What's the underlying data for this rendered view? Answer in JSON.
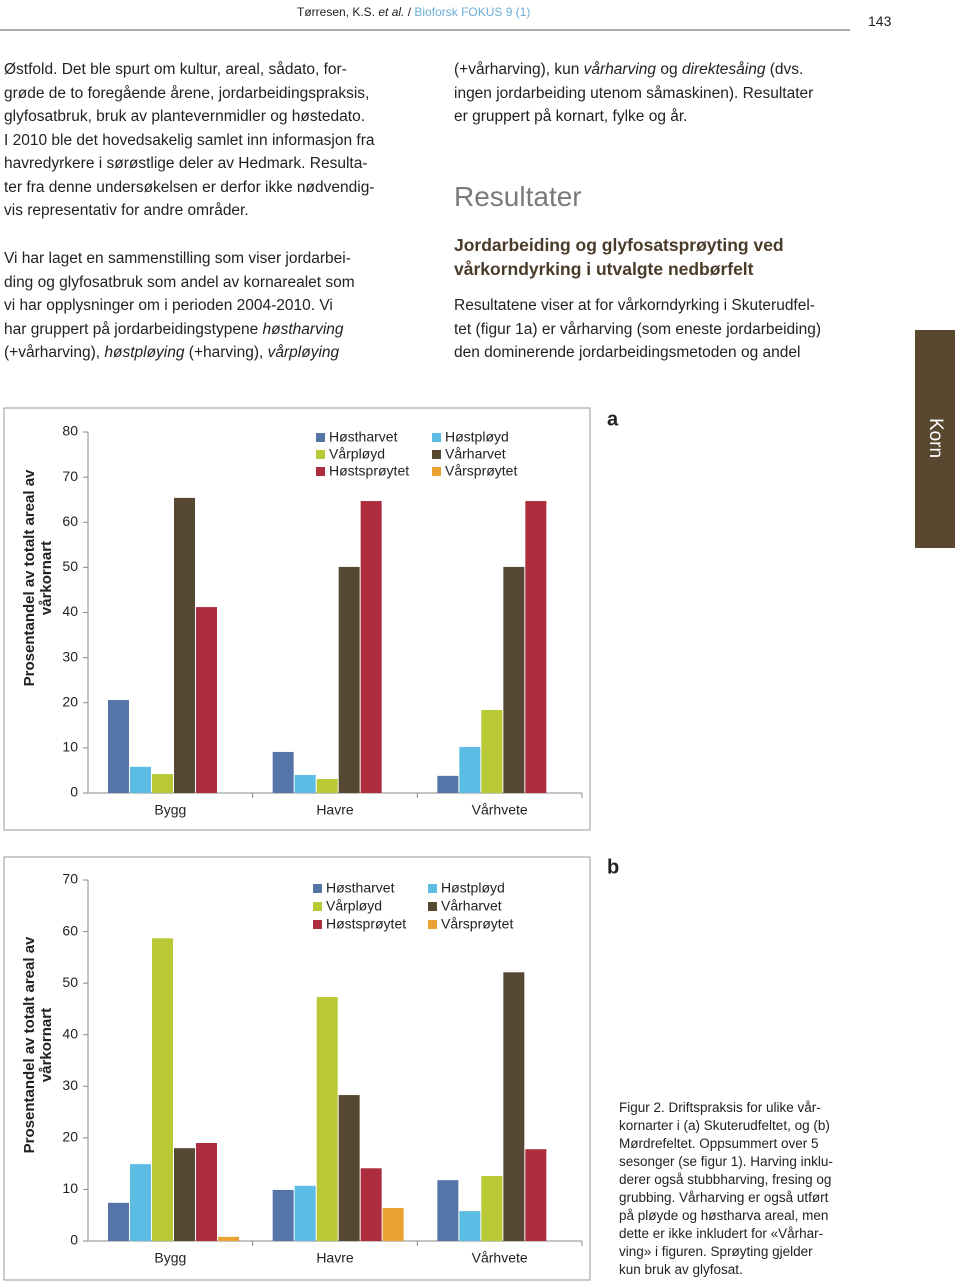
{
  "header": {
    "parts": [
      {
        "text": "Tørresen, K.S. "
      },
      {
        "text": "et al.",
        "italic": true
      },
      {
        "text": " / "
      },
      {
        "text": "Bioforsk FOKUS 9 (1)",
        "color": "#6aaed6"
      }
    ]
  },
  "page_number": "143",
  "left_column": {
    "paragraphs": [
      [
        "Østfold. Det ble spurt om kultur, areal, sådato, for-",
        "grøde de to foregående årene, jordarbeidingspraksis,",
        "glyfosatbruk, bruk av plantevernmidler og høstedato.",
        "I 2010 ble det hovedsakelig samlet inn informasjon fra",
        "havredyrkere i sørøstlige deler av Hedmark. Resulta-",
        "ter fra denne undersøkelsen er derfor ikke nødvendig-",
        "vis representativ for andre områder."
      ],
      [
        "Vi har laget en sammenstilling som viser jordarbei-",
        "ding og glyfosatbruk som andel av kornarealet som",
        "vi har opplysninger om i perioden 2004-2010. Vi",
        [
          {
            "text": "har gruppert på jordarbeidingstypene "
          },
          {
            "text": "høstharving",
            "italic": true
          }
        ],
        [
          {
            "text": "(+vårharving), "
          },
          {
            "text": "høstpløying",
            "italic": true
          },
          {
            "text": " (+harving), "
          },
          {
            "text": "vårpløying",
            "italic": true
          }
        ]
      ]
    ]
  },
  "right_column": {
    "intro": [
      [
        {
          "text": "(+vårharving), kun "
        },
        {
          "text": "vårharving",
          "italic": true
        },
        {
          "text": " og "
        },
        {
          "text": "direktesåing",
          "italic": true
        },
        {
          "text": " (dvs."
        }
      ],
      "ingen jordarbeiding utenom såmaskinen). Resultater",
      "er gruppert på kornart, fylke og år."
    ],
    "heading": "Resultater",
    "subheading": [
      "Jordarbeiding og glyfosatsprøyting ved",
      "vårkorndyrking i utvalgte nedbørfelt"
    ],
    "paragraph": [
      "Resultatene viser at for vårkorndyrking i Skuterudfel-",
      "tet (figur 1a) er vårharving (som eneste jordarbeiding)",
      "den dominerende jordarbeidingsmetoden og andel"
    ]
  },
  "side_tab": "Korn",
  "chart_data": [
    {
      "type": "bar",
      "label": "a",
      "ylabel": [
        "Prosentandel av totalt areal av",
        "vårkornart"
      ],
      "categories": [
        "Bygg",
        "Havre",
        "Vårhvete"
      ],
      "series": [
        {
          "name": "Høstharvet",
          "color": "#5575a8",
          "values": [
            20.6,
            9.1,
            3.8
          ]
        },
        {
          "name": "Høstpløyd",
          "color": "#5bbde4",
          "values": [
            5.8,
            4.0,
            10.2
          ]
        },
        {
          "name": "Vårpløyd",
          "color": "#b9c935",
          "values": [
            4.2,
            3.1,
            18.4
          ]
        },
        {
          "name": "Vårharvet",
          "color": "#574834",
          "values": [
            65.4,
            50.1,
            50.1
          ]
        },
        {
          "name": "Høstsprøytet",
          "color": "#ad2d3f",
          "values": [
            41.2,
            64.7,
            64.7
          ]
        },
        {
          "name": "Vårsprøytet",
          "color": "#eaa231",
          "values": [
            0,
            0,
            0
          ]
        }
      ],
      "ylim": [
        0,
        80
      ],
      "yticks": [
        0,
        10,
        20,
        30,
        40,
        50,
        60,
        70,
        80
      ]
    },
    {
      "type": "bar",
      "label": "b",
      "ylabel": [
        "Prosentandel av totalt areal av",
        "vårkornart"
      ],
      "categories": [
        "Bygg",
        "Havre",
        "Vårhvete"
      ],
      "series": [
        {
          "name": "Høstharvet",
          "color": "#5575a8",
          "values": [
            7.4,
            9.9,
            11.8
          ]
        },
        {
          "name": "Høstpløyd",
          "color": "#5bbde4",
          "values": [
            14.9,
            10.7,
            5.8
          ]
        },
        {
          "name": "Vårpløyd",
          "color": "#b9c935",
          "values": [
            58.7,
            47.3,
            12.6
          ]
        },
        {
          "name": "Vårharvet",
          "color": "#574834",
          "values": [
            18.0,
            28.3,
            52.1
          ]
        },
        {
          "name": "Høstsprøytet",
          "color": "#ad2d3f",
          "values": [
            19.0,
            14.1,
            17.8
          ]
        },
        {
          "name": "Vårsprøytet",
          "color": "#eaa231",
          "values": [
            0.8,
            6.4,
            0
          ]
        }
      ],
      "ylim": [
        0,
        70
      ],
      "yticks": [
        0,
        10,
        20,
        30,
        40,
        50,
        60,
        70
      ]
    }
  ],
  "caption": [
    "Figur 2. Driftspraksis for ulike vår-",
    "kornarter i (a) Skuterudfeltet, og (b)",
    "Mørdrefeltet. Oppsummert over 5",
    "sesonger (se figur 1). Harving inklu-",
    "derer også stubbharving, fresing og",
    "grubbing. Vårharving er også utført",
    "på pløyde og høstharva areal, men",
    "dette er ikke inkludert for «Vårhar-",
    "ving» i figuren. Sprøyting gjelder",
    "kun bruk av glyfosat."
  ]
}
